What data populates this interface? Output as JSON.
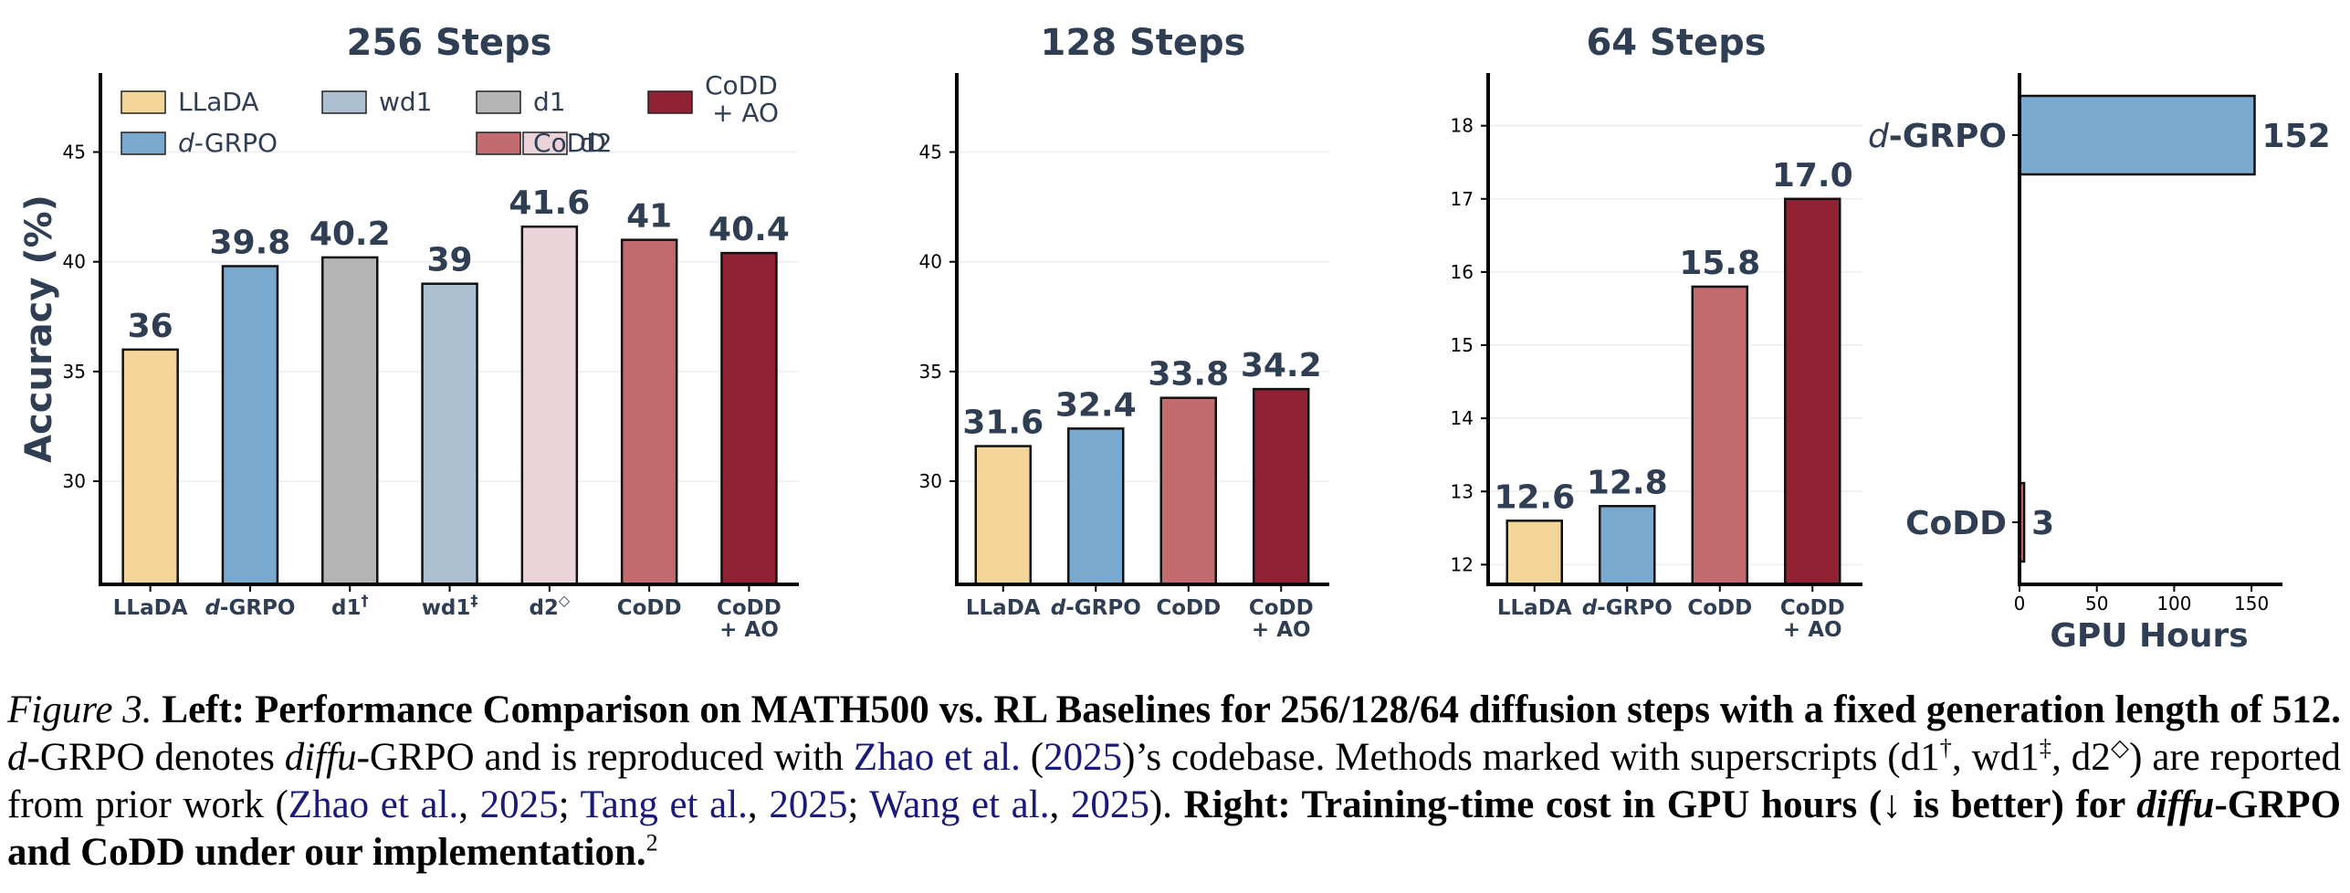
{
  "chart_data": [
    {
      "type": "bar",
      "title": "256 Steps",
      "ylabel": "Accuracy (%)",
      "ylim": [
        25.3,
        48.6
      ],
      "yticks": [
        "30",
        "35",
        "40",
        "45"
      ],
      "grid": true,
      "legend": {
        "placement": "top",
        "entries": [
          {
            "label": "LLaDA",
            "color": "#f3d499"
          },
          {
            "label": "d-GRPO",
            "color": "#7aa9d0"
          },
          {
            "label": "wd1",
            "color": "#abbfd1"
          },
          {
            "label": "d2",
            "color": "#ead4d9"
          },
          {
            "label": "d1",
            "color": "#b5b5b5"
          },
          {
            "label": "CoDD",
            "color": "#c36b6e"
          },
          {
            "label": "CoDD + AO",
            "color": "#912234"
          }
        ]
      },
      "categories": [
        "LLaDA",
        "d-GRPO",
        "d1†",
        "wd1‡",
        "d2◇",
        "CoDD",
        "CoDD + AO"
      ],
      "values": [
        36,
        39.8,
        40.2,
        39,
        41.6,
        41,
        40.4
      ],
      "data_labels": [
        "36",
        "39.8",
        "40.2",
        "39",
        "41.6",
        "41",
        "40.4"
      ],
      "colors": [
        "#f3d499",
        "#7aa9d0",
        "#b5b5b5",
        "#abbfd1",
        "#ead4d9",
        "#c36b6e",
        "#912234"
      ]
    },
    {
      "type": "bar",
      "title": "128 Steps",
      "ylim": [
        25.3,
        48.6
      ],
      "yticks": [
        "30",
        "35",
        "40",
        "45"
      ],
      "grid": true,
      "categories": [
        "LLaDA",
        "d-GRPO",
        "CoDD",
        "CoDD + AO"
      ],
      "values": [
        31.6,
        32.4,
        33.8,
        34.2
      ],
      "data_labels": [
        "31.6",
        "32.4",
        "33.8",
        "34.2"
      ],
      "colors": [
        "#f3d499",
        "#7aa9d0",
        "#c36b6e",
        "#912234"
      ]
    },
    {
      "type": "bar",
      "title": "64 Steps",
      "ylim": [
        11.73,
        18.72
      ],
      "yticks": [
        "12",
        "13",
        "14",
        "15",
        "16",
        "17",
        "18"
      ],
      "grid": true,
      "categories": [
        "LLaDA",
        "d-GRPO",
        "CoDD",
        "CoDD + AO"
      ],
      "values": [
        12.6,
        12.8,
        15.8,
        17.0
      ],
      "data_labels": [
        "12.6",
        "12.8",
        "15.8",
        "17.0"
      ],
      "colors": [
        "#f3d499",
        "#7aa9d0",
        "#c36b6e",
        "#912234"
      ]
    },
    {
      "type": "bar",
      "orientation": "horizontal",
      "xlabel": "GPU Hours",
      "xlim": [
        0,
        170
      ],
      "xticks": [
        "0",
        "50",
        "100",
        "150"
      ],
      "categories": [
        "d-GRPO",
        "CoDD"
      ],
      "values": [
        152,
        3
      ],
      "data_labels": [
        "152",
        "3"
      ],
      "colors": [
        "#7aa9d0",
        "#c36b6e"
      ]
    }
  ],
  "caption": {
    "fig_label": "Figure 3.",
    "bold_left": " Left: Performance Comparison on MATH500 vs. RL Baselines for 256/128/64 diffusion steps with a fixed generation length of 512.",
    "part1_italic_d": " d",
    "part1": "-GRPO denotes ",
    "diffu": "diffu",
    "part2": "-GRPO and is reproduced with ",
    "ref1_name": "Zhao et al.",
    "ref1_open": " (",
    "ref1_year": "2025",
    "part3": ")’s codebase. Methods marked with superscripts (d1",
    "dagger": "†",
    "part4": ", wd1",
    "ddagger": "‡",
    "part5": ", d2",
    "diamond": "◇",
    "part6": ") are reported from prior work (",
    "ref2a": "Zhao et al.",
    "ref2b": "2025",
    "ref3a": "Tang et al.",
    "ref3b": "2025",
    "ref4a": "Wang et al.",
    "ref4b": "2025",
    "part7": ").",
    "bold_right_1": " Right: Training-time cost in GPU hours (↓ is better) for ",
    "bold_right_diffu": "diffu",
    "bold_right_2": "-GRPO and CoDD under our implementation.",
    "footnote": "2"
  }
}
